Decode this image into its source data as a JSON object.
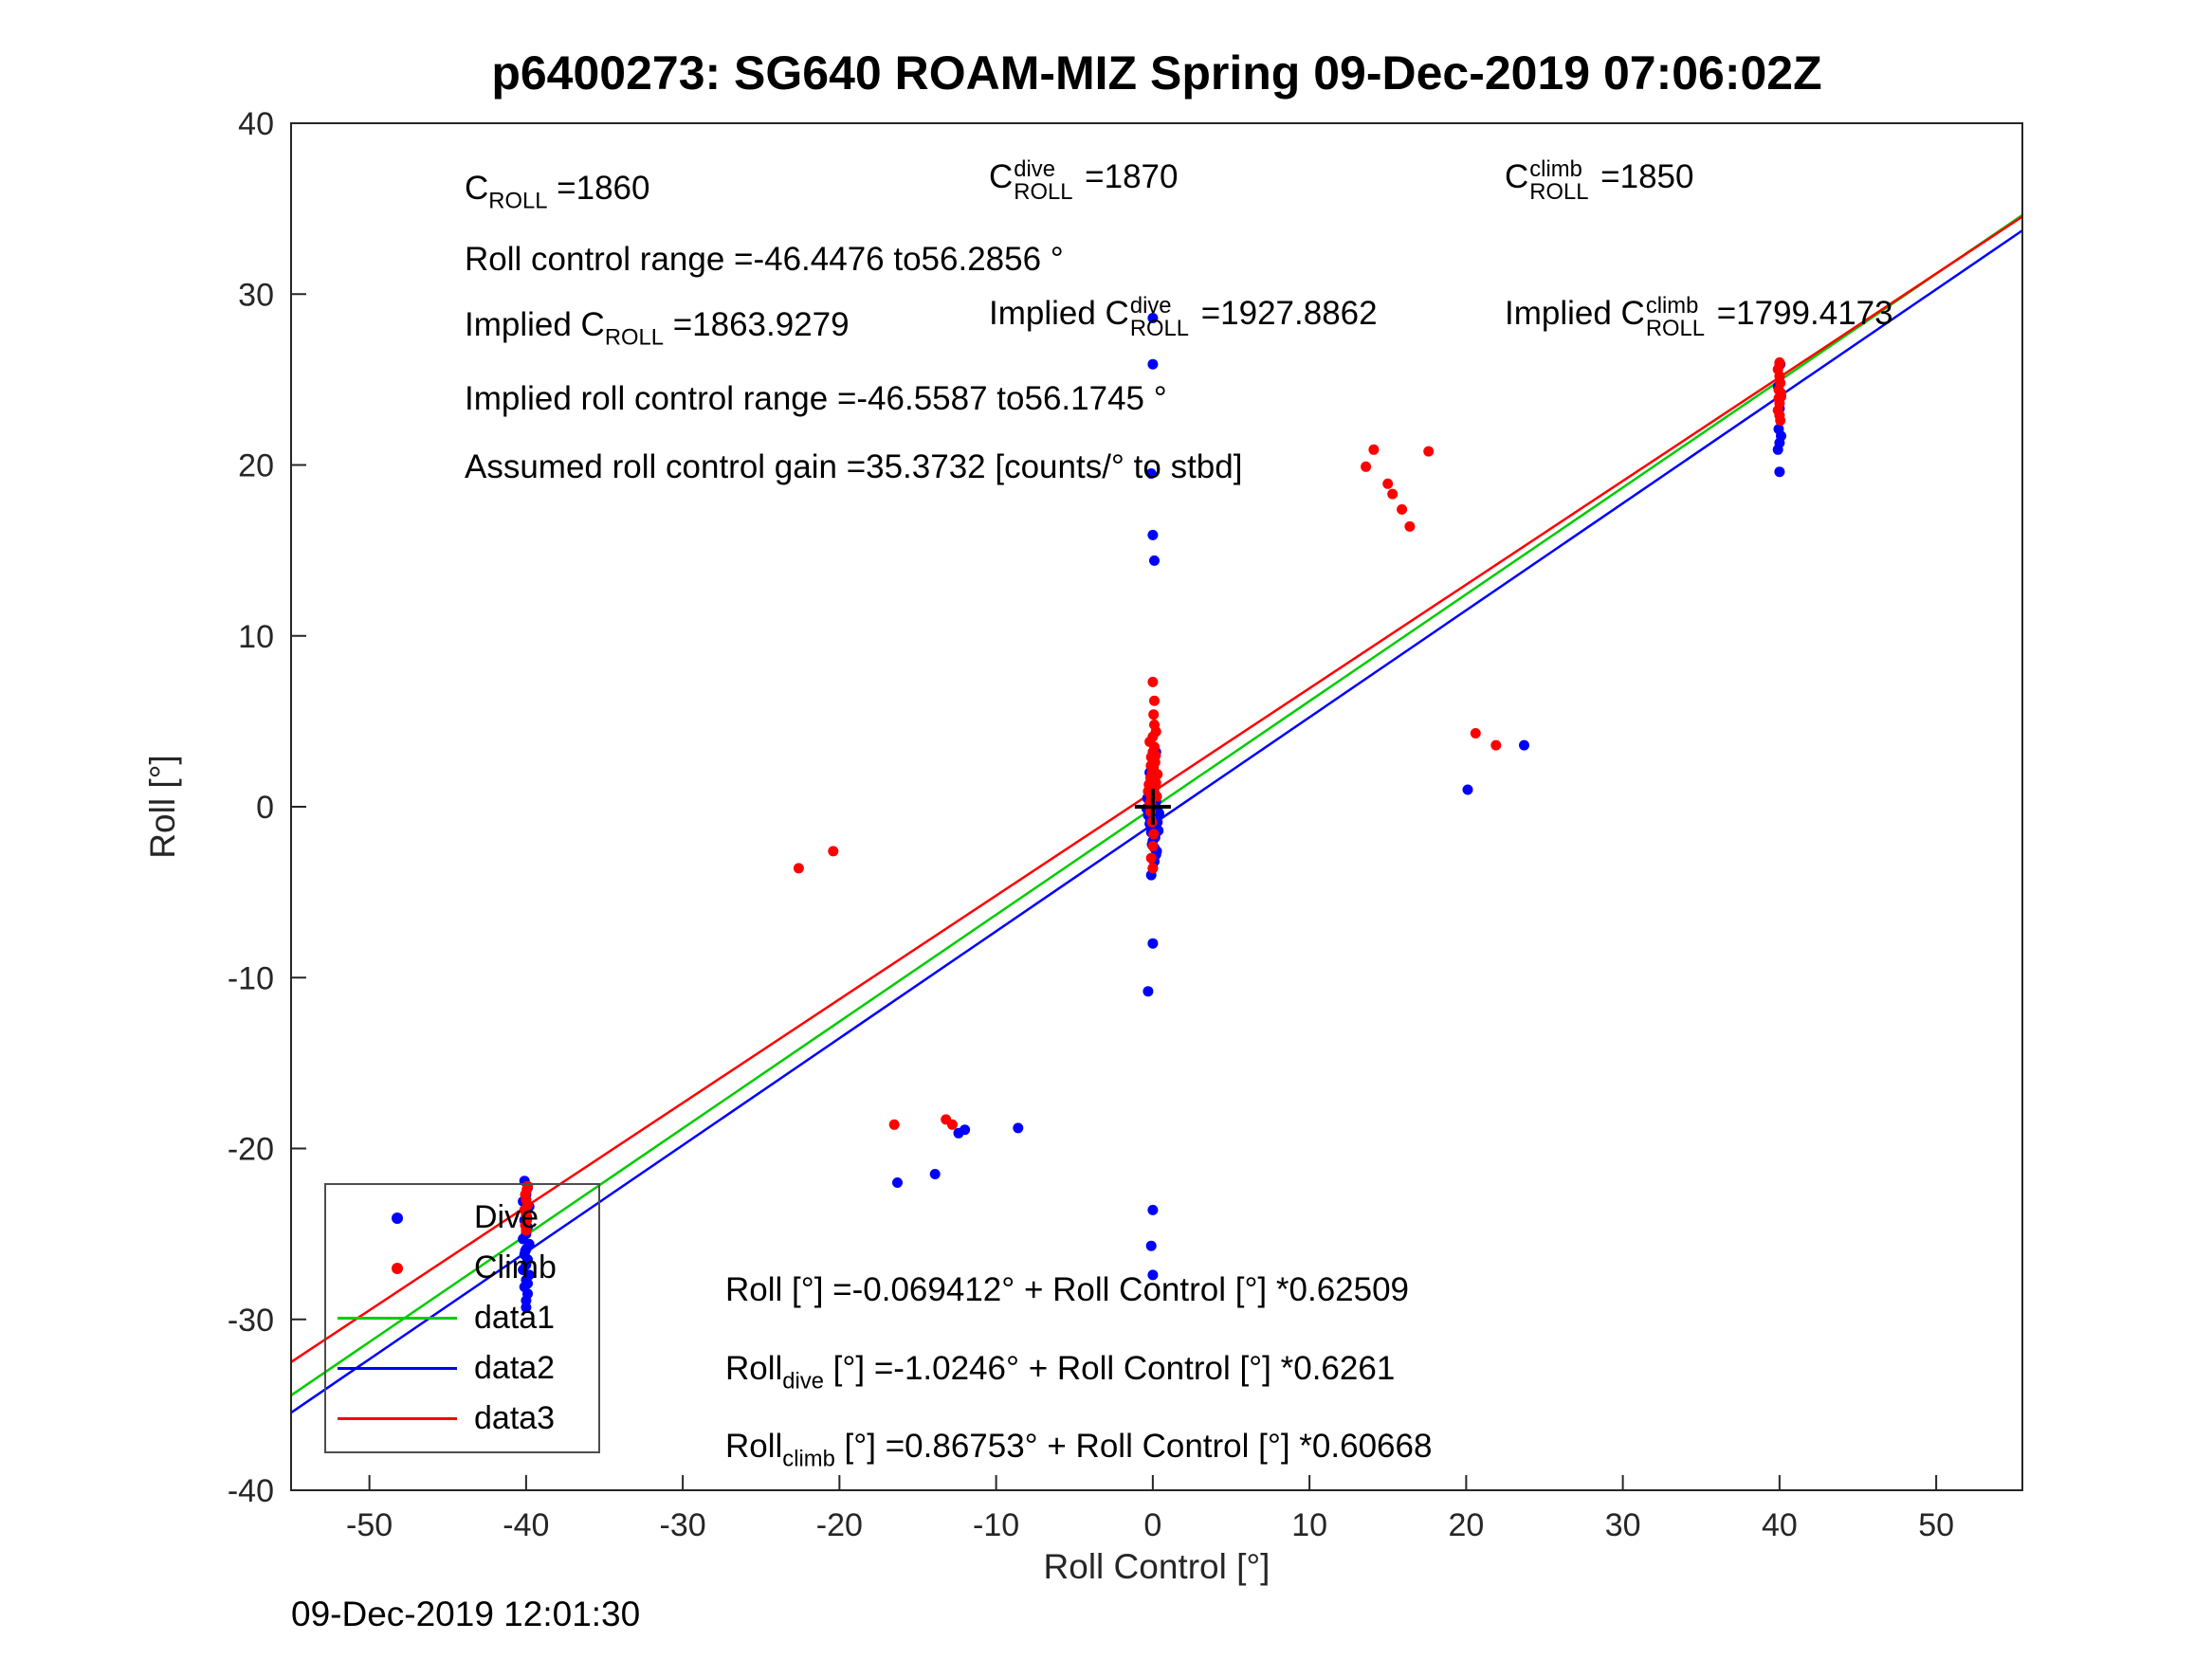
{
  "timestamp": "09-Dec-2019 12:01:30",
  "colors": {
    "dive": "#0000ff",
    "climb": "#ff0000",
    "fit_all": "#00cc00",
    "fit_dive": "#0000ff",
    "fit_climb": "#ff0000",
    "axis": "#262626",
    "marker_origin": "#000000"
  },
  "ann": {
    "c_roll": [
      {
        "t": "C"
      },
      {
        "sub": "ROLL"
      },
      {
        "t": " =1860"
      }
    ],
    "c_dive": [
      {
        "t": "C"
      },
      {
        "stack": [
          "dive",
          "ROLL"
        ]
      },
      {
        "t": " =1870"
      }
    ],
    "c_climb": [
      {
        "t": "C"
      },
      {
        "stack": [
          "climb",
          "ROLL"
        ]
      },
      {
        "t": " =1850"
      }
    ],
    "roll_range": [
      {
        "t": "Roll control range =-46.4476 to56.2856 °"
      }
    ],
    "imp_c_roll": [
      {
        "t": "Implied C"
      },
      {
        "sub": "ROLL"
      },
      {
        "t": " =1863.9279"
      }
    ],
    "imp_c_dive": [
      {
        "t": "Implied C"
      },
      {
        "stack": [
          "dive",
          "ROLL"
        ]
      },
      {
        "t": " =1927.8862"
      }
    ],
    "imp_c_climb": [
      {
        "t": "Implied C"
      },
      {
        "stack": [
          "climb",
          "ROLL"
        ]
      },
      {
        "t": " =1799.4173"
      }
    ],
    "imp_range": [
      {
        "t": "Implied roll control range =-46.5587 to56.1745 °"
      }
    ],
    "gain": [
      {
        "t": "Assumed roll control gain =35.3732 [counts/° to stbd]"
      }
    ],
    "eq1": [
      {
        "t": "Roll [°] =-0.069412° + Roll Control [°] *0.62509"
      }
    ],
    "eq2": [
      {
        "t": "Roll"
      },
      {
        "sub": "dive"
      },
      {
        "t": " [°] =-1.0246° + Roll Control [°] *0.6261"
      }
    ],
    "eq3": [
      {
        "t": "Roll"
      },
      {
        "sub": "climb"
      },
      {
        "t": " [°] =0.86753° + Roll Control [°] *0.60668"
      }
    ]
  },
  "legend": {
    "items": [
      {
        "label": "Dive",
        "type": "dot",
        "color": "#0000ff"
      },
      {
        "label": "Climb",
        "type": "dot",
        "color": "#ff0000"
      },
      {
        "label": "data1",
        "type": "line",
        "color": "#00cc00"
      },
      {
        "label": "data2",
        "type": "line",
        "color": "#0000ff"
      },
      {
        "label": "data3",
        "type": "line",
        "color": "#ff0000"
      }
    ]
  },
  "chart_data": {
    "type": "scatter",
    "title": "p6400273: SG640 ROAM-MIZ Spring 09-Dec-2019 07:06:02Z",
    "xlabel": "Roll Control [°]",
    "ylabel": "Roll [°]",
    "xlim": [
      -55,
      55.5
    ],
    "ylim": [
      -40,
      40
    ],
    "xticks": [
      -50,
      -40,
      -30,
      -20,
      -10,
      0,
      10,
      20,
      30,
      40,
      50
    ],
    "yticks": [
      -40,
      -30,
      -20,
      -10,
      0,
      10,
      20,
      30,
      40
    ],
    "grid": false,
    "legend_position": "lower-left",
    "series": [
      {
        "name": "Dive",
        "marker": "dot",
        "color": "#0000ff",
        "points": [
          [
            -40.1,
            -21.9
          ],
          [
            -39.9,
            -22.3
          ],
          [
            -40.0,
            -22.7
          ],
          [
            -40.2,
            -23.1
          ],
          [
            -39.8,
            -23.4
          ],
          [
            -40.0,
            -23.8
          ],
          [
            -40.1,
            -24.2
          ],
          [
            -39.9,
            -24.6
          ],
          [
            -40.0,
            -25.0
          ],
          [
            -40.2,
            -25.3
          ],
          [
            -39.8,
            -25.6
          ],
          [
            -40.0,
            -25.9
          ],
          [
            -40.1,
            -26.2
          ],
          [
            -39.9,
            -26.5
          ],
          [
            -40.0,
            -26.8
          ],
          [
            -40.2,
            -27.1
          ],
          [
            -39.8,
            -27.4
          ],
          [
            -40.0,
            -27.7
          ],
          [
            -40.1,
            -28.1
          ],
          [
            -39.9,
            -28.5
          ],
          [
            -40.0,
            -28.9
          ],
          [
            -40.0,
            -29.3
          ],
          [
            -39.95,
            -24.0
          ],
          [
            -40.05,
            -26.0
          ],
          [
            -39.9,
            -27.9
          ],
          [
            -0.3,
            -0.5
          ],
          [
            -0.2,
            -1.0
          ],
          [
            -0.1,
            -1.5
          ],
          [
            0.0,
            -2.0
          ],
          [
            0.1,
            -2.4
          ],
          [
            0.2,
            -2.8
          ],
          [
            0.1,
            -3.2
          ],
          [
            0.0,
            -3.6
          ],
          [
            -0.1,
            -4.0
          ],
          [
            0.3,
            -0.2
          ],
          [
            0.2,
            0.3
          ],
          [
            0.1,
            0.8
          ],
          [
            0.0,
            1.2
          ],
          [
            -0.1,
            1.6
          ],
          [
            -0.2,
            2.0
          ],
          [
            0.0,
            2.4
          ],
          [
            0.1,
            2.8
          ],
          [
            0.2,
            3.2
          ],
          [
            -0.15,
            -0.8
          ],
          [
            0.05,
            -1.2
          ],
          [
            0.15,
            -1.8
          ],
          [
            -0.05,
            -2.2
          ],
          [
            0.25,
            -2.6
          ],
          [
            0.35,
            -1.4
          ],
          [
            0.3,
            -0.9
          ],
          [
            0.4,
            -0.4
          ],
          [
            -0.4,
            -0.1
          ],
          [
            -0.35,
            0.5
          ],
          [
            0.0,
            28.6
          ],
          [
            0.0,
            25.9
          ],
          [
            -0.1,
            19.5
          ],
          [
            0.0,
            15.9
          ],
          [
            0.1,
            14.4
          ],
          [
            0.0,
            -8.0
          ],
          [
            -0.3,
            -10.8
          ],
          [
            0.0,
            -23.6
          ],
          [
            -0.1,
            -25.7
          ],
          [
            0.0,
            -27.4
          ],
          [
            39.9,
            20.9
          ],
          [
            40.0,
            21.3
          ],
          [
            40.1,
            21.7
          ],
          [
            39.95,
            22.1
          ],
          [
            40.0,
            19.6
          ],
          [
            40.05,
            25.9
          ],
          [
            39.9,
            24.6
          ],
          [
            40.0,
            23.3
          ],
          [
            23.7,
            3.6
          ],
          [
            20.1,
            1.0
          ],
          [
            -12.4,
            -19.1
          ],
          [
            -12.0,
            -18.9
          ],
          [
            -8.6,
            -18.8
          ],
          [
            -16.3,
            -22.0
          ],
          [
            -13.9,
            -21.5
          ]
        ]
      },
      {
        "name": "Climb",
        "marker": "dot",
        "color": "#ff0000",
        "points": [
          [
            -39.95,
            -22.4
          ],
          [
            -40.05,
            -22.7
          ],
          [
            -40.0,
            -23.0
          ],
          [
            -39.9,
            -23.3
          ],
          [
            -40.1,
            -23.6
          ],
          [
            -40.0,
            -23.9
          ],
          [
            -39.95,
            -24.2
          ],
          [
            -40.05,
            -24.5
          ],
          [
            -40.0,
            -24.8
          ],
          [
            -39.9,
            -22.2
          ],
          [
            -0.2,
            0.2
          ],
          [
            -0.1,
            0.5
          ],
          [
            0.0,
            0.8
          ],
          [
            0.1,
            1.1
          ],
          [
            0.2,
            1.4
          ],
          [
            -0.15,
            1.7
          ],
          [
            -0.05,
            2.0
          ],
          [
            0.05,
            2.3
          ],
          [
            0.15,
            2.6
          ],
          [
            -0.1,
            2.9
          ],
          [
            0.0,
            3.2
          ],
          [
            0.1,
            3.5
          ],
          [
            -0.2,
            3.8
          ],
          [
            0.0,
            4.1
          ],
          [
            -0.25,
            1.3
          ],
          [
            -0.3,
            0.9
          ],
          [
            0.25,
            0.6
          ],
          [
            0.3,
            1.9
          ],
          [
            -0.15,
            -0.3
          ],
          [
            -0.05,
            -0.9
          ],
          [
            0.05,
            -1.6
          ],
          [
            0.0,
            -2.3
          ],
          [
            -0.1,
            -3.0
          ],
          [
            0.0,
            -3.6
          ],
          [
            0.2,
            4.4
          ],
          [
            0.1,
            4.8
          ],
          [
            0.05,
            5.4
          ],
          [
            0.1,
            6.2
          ],
          [
            0.0,
            7.3
          ],
          [
            -0.1,
            0.1
          ],
          [
            -0.05,
            1.0
          ],
          [
            0.08,
            1.8
          ],
          [
            -0.12,
            2.4
          ],
          [
            0.18,
            3.0
          ],
          [
            39.9,
            23.2
          ],
          [
            40.0,
            23.6
          ],
          [
            40.1,
            24.0
          ],
          [
            39.95,
            24.4
          ],
          [
            40.05,
            24.8
          ],
          [
            40.0,
            25.2
          ],
          [
            39.9,
            25.6
          ],
          [
            40.0,
            26.0
          ],
          [
            40.1,
            24.2
          ],
          [
            39.95,
            23.9
          ],
          [
            40.0,
            22.9
          ],
          [
            40.05,
            22.6
          ],
          [
            40.0,
            25.9
          ],
          [
            -22.6,
            -3.6
          ],
          [
            -20.4,
            -2.6
          ],
          [
            20.6,
            4.3
          ],
          [
            21.9,
            3.6
          ],
          [
            13.6,
            19.9
          ],
          [
            14.1,
            20.9
          ],
          [
            15.0,
            18.9
          ],
          [
            15.3,
            18.3
          ],
          [
            15.9,
            17.4
          ],
          [
            16.4,
            16.4
          ],
          [
            17.6,
            20.8
          ],
          [
            -16.5,
            -18.6
          ],
          [
            -13.2,
            -18.3
          ],
          [
            -12.8,
            -18.6
          ]
        ]
      }
    ],
    "lines": [
      {
        "name": "data1",
        "color": "#00cc00",
        "intercept": -0.069412,
        "slope": 0.62509
      },
      {
        "name": "data2",
        "color": "#0000ff",
        "intercept": -1.0246,
        "slope": 0.6261
      },
      {
        "name": "data3",
        "color": "#ff0000",
        "intercept": 0.86753,
        "slope": 0.60668
      }
    ],
    "origin_marker": {
      "x": 0,
      "y": 0,
      "symbol": "+",
      "color": "#000000"
    }
  }
}
